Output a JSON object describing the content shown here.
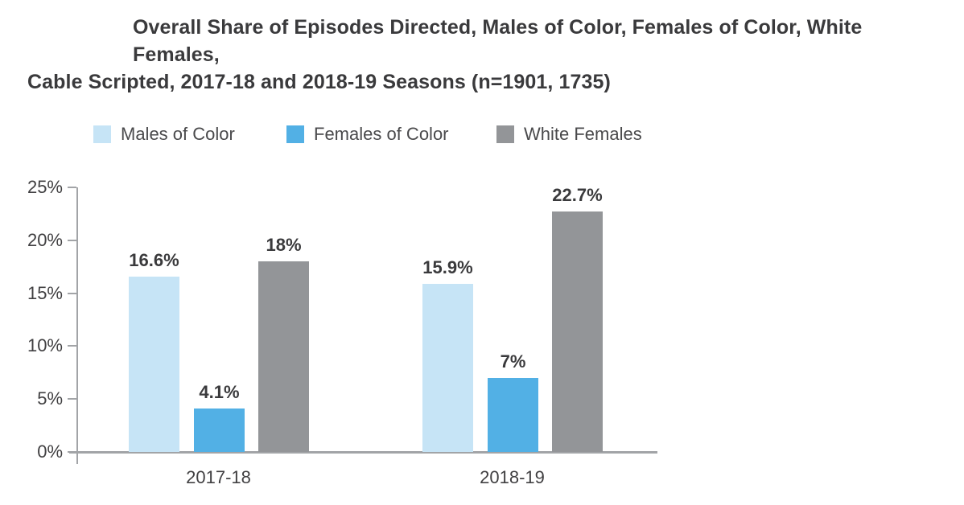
{
  "title": {
    "line1": "Overall Share of Episodes Directed, Males of Color, Females of Color, White Females,",
    "line2": "Cable Scripted, 2017-18 and 2018-19 Seasons (n=1901, 1735)"
  },
  "legend": {
    "items": [
      {
        "label": "Males of Color",
        "color_key": "males_of_color"
      },
      {
        "label": "Females of Color",
        "color_key": "females_of_color"
      },
      {
        "label": "White Females",
        "color_key": "white_females"
      }
    ]
  },
  "colors": {
    "males_of_color": "#c6e4f6",
    "females_of_color": "#52b0e5",
    "white_females": "#939598",
    "axis": "#a2a4a7",
    "text_dark": "#3a3a3c"
  },
  "chart_data": {
    "type": "bar",
    "title": "Overall Share of Episodes Directed, Males of Color, Females of Color, White Females, Cable Scripted, 2017-18 and 2018-19 Seasons (n=1901, 1735)",
    "categories": [
      "2017-18",
      "2018-19"
    ],
    "series": [
      {
        "name": "Males of Color",
        "color_key": "males_of_color",
        "values": [
          16.6,
          15.9
        ],
        "labels": [
          "16.6%",
          "15.9%"
        ]
      },
      {
        "name": "Females of Color",
        "color_key": "females_of_color",
        "values": [
          4.1,
          7.0
        ],
        "labels": [
          "4.1%",
          "7%"
        ]
      },
      {
        "name": "White Females",
        "color_key": "white_females",
        "values": [
          18.0,
          22.7
        ],
        "labels": [
          "18%",
          "22.7%"
        ]
      }
    ],
    "xlabel": "",
    "ylabel": "",
    "ylim": [
      0,
      25
    ],
    "ytick_step": 5,
    "yticks": [
      "0%",
      "5%",
      "10%",
      "15%",
      "20%",
      "25%"
    ],
    "legend_position": "top",
    "grid": false
  }
}
